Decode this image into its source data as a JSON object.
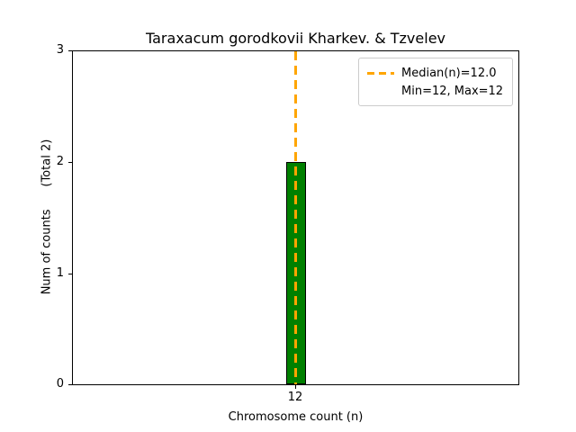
{
  "chart_data": {
    "type": "bar",
    "title": "Taraxacum gorodkovii Kharkev. & Tzvelev",
    "xlabel": "Chromosome count (n)",
    "ylabel": "Num of counts      (Total 2)",
    "categories": [
      "12"
    ],
    "values": [
      2
    ],
    "total": 2,
    "xlim_note": "single category centered at 12",
    "ylim": [
      0,
      3
    ],
    "yticks": [
      "0",
      "1",
      "2",
      "3"
    ],
    "xticks": [
      "12"
    ],
    "grid": "off",
    "bar_color": "#008000",
    "bar_edge_color": "#000000",
    "median_line": {
      "value": 12.0,
      "color": "#FFA500",
      "style": "dashed",
      "orientation": "vertical"
    },
    "legend": {
      "position": "upper right",
      "border_color": "#cccccc",
      "entries": [
        {
          "label": "Median(n)=12.0",
          "marker": "dashed-line",
          "color": "#FFA500"
        },
        {
          "label": "Min=12, Max=12",
          "marker": "none"
        }
      ]
    }
  }
}
